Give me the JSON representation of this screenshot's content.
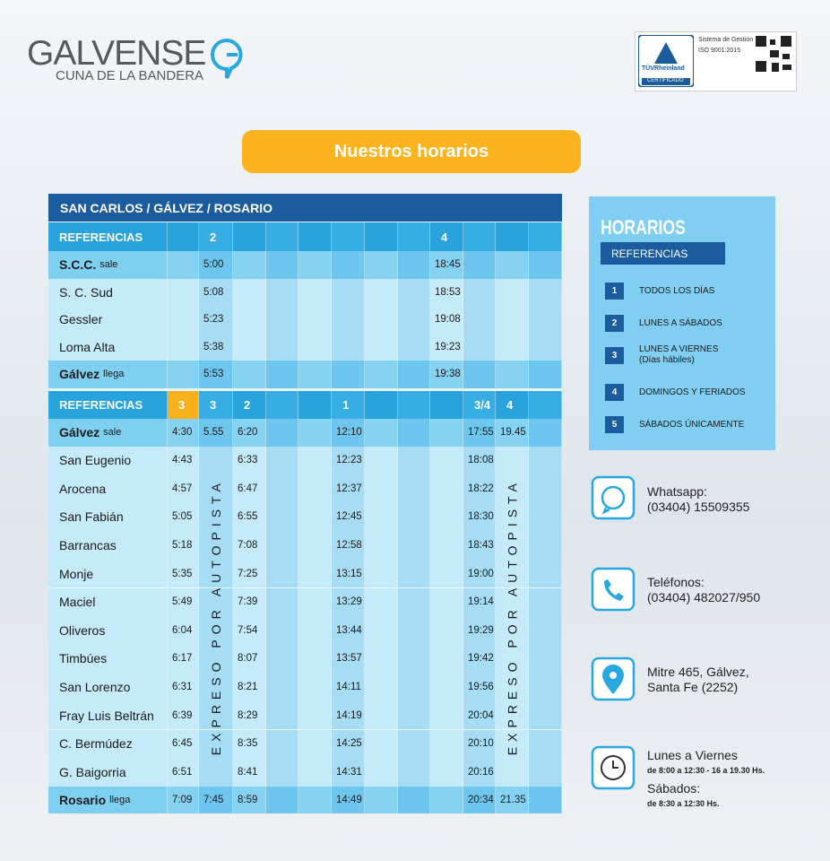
{
  "header": {
    "logo_name": "GALVENSE",
    "logo_tagline": "CUNA DE LA BANDERA",
    "cert_brand": "TÜVRheinland",
    "cert_label": "CERTIFICADO",
    "cert_system": "Sistema de Gestión",
    "cert_iso": "ISO 9001:2015"
  },
  "button": "Nuestros horarios",
  "table": {
    "title": "SAN CARLOS / GÁLVEZ / ROSARIO",
    "express_label": "EXPRESO POR AUTOPISTA",
    "sections": [
      {
        "ref_label": "REFERENCIAS",
        "refs": [
          null,
          "2",
          null,
          null,
          null,
          null,
          null,
          null,
          "4",
          null,
          null,
          null
        ],
        "rows": [
          {
            "name": "S.C.C.",
            "note": "sale",
            "times": [
              null,
              "5:00",
              null,
              null,
              null,
              null,
              null,
              null,
              "18:45",
              null,
              null,
              null
            ]
          },
          {
            "name": "S. C. Sud",
            "times": [
              null,
              "5:08",
              null,
              null,
              null,
              null,
              null,
              null,
              "18:53",
              null,
              null,
              null
            ]
          },
          {
            "name": "Gessler",
            "times": [
              null,
              "5:23",
              null,
              null,
              null,
              null,
              null,
              null,
              "19:08",
              null,
              null,
              null
            ]
          },
          {
            "name": "Loma Alta",
            "times": [
              null,
              "5:38",
              null,
              null,
              null,
              null,
              null,
              null,
              "19:23",
              null,
              null,
              null
            ]
          },
          {
            "name": "Gálvez",
            "note": "llega",
            "times": [
              null,
              "5:53",
              null,
              null,
              null,
              null,
              null,
              null,
              "19:38",
              null,
              null,
              null
            ]
          }
        ]
      },
      {
        "ref_label": "REFERENCIAS",
        "refs": [
          "3",
          "3",
          "2",
          null,
          null,
          "1",
          null,
          null,
          null,
          "3/4",
          "4",
          null
        ],
        "rows": [
          {
            "name": "Gálvez",
            "note": "sale",
            "times": [
              "4:30",
              "5.55",
              "6:20",
              null,
              null,
              "12:10",
              null,
              null,
              null,
              "17:55",
              "19.45",
              null
            ]
          },
          {
            "name": "San Eugenio",
            "times": [
              "4:43",
              null,
              "6:33",
              null,
              null,
              "12:23",
              null,
              null,
              null,
              "18:08",
              null,
              null
            ]
          },
          {
            "name": "Arocena",
            "times": [
              "4:57",
              null,
              "6:47",
              null,
              null,
              "12:37",
              null,
              null,
              null,
              "18:22",
              null,
              null
            ]
          },
          {
            "name": "San Fabián",
            "times": [
              "5:05",
              null,
              "6:55",
              null,
              null,
              "12:45",
              null,
              null,
              null,
              "18:30",
              null,
              null
            ]
          },
          {
            "name": "Barrancas",
            "times": [
              "5:18",
              null,
              "7:08",
              null,
              null,
              "12:58",
              null,
              null,
              null,
              "18:43",
              null,
              null
            ]
          },
          {
            "name": "Monje",
            "times": [
              "5:35",
              null,
              "7:25",
              null,
              null,
              "13:15",
              null,
              null,
              null,
              "19:00",
              null,
              null
            ]
          },
          {
            "name": "Maciel",
            "times": [
              "5:49",
              null,
              "7:39",
              null,
              null,
              "13:29",
              null,
              null,
              null,
              "19:14",
              null,
              null
            ]
          },
          {
            "name": "Oliveros",
            "times": [
              "6:04",
              null,
              "7:54",
              null,
              null,
              "13:44",
              null,
              null,
              null,
              "19:29",
              null,
              null
            ]
          },
          {
            "name": "Timbúes",
            "times": [
              "6:17",
              null,
              "8:07",
              null,
              null,
              "13:57",
              null,
              null,
              null,
              "19:42",
              null,
              null
            ]
          },
          {
            "name": "San Lorenzo",
            "times": [
              "6:31",
              null,
              "8:21",
              null,
              null,
              "14:11",
              null,
              null,
              null,
              "19:56",
              null,
              null
            ]
          },
          {
            "name": "Fray Luis Beltrán",
            "times": [
              "6:39",
              null,
              "8:29",
              null,
              null,
              "14:19",
              null,
              null,
              null,
              "20:04",
              null,
              null
            ]
          },
          {
            "name": "C. Bermúdez",
            "times": [
              "6:45",
              null,
              "8:35",
              null,
              null,
              "14:25",
              null,
              null,
              null,
              "20:10",
              null,
              null
            ]
          },
          {
            "name": "G. Baigorria",
            "times": [
              "6:51",
              null,
              "8:41",
              null,
              null,
              "14:31",
              null,
              null,
              null,
              "20:16",
              null,
              null
            ]
          },
          {
            "name": "Rosario",
            "note": "llega",
            "times": [
              "7:09",
              "7:45",
              "8:59",
              null,
              null,
              "14:49",
              null,
              null,
              null,
              "20:34",
              "21.35",
              null
            ]
          }
        ]
      }
    ]
  },
  "references": {
    "title": "HORARIOS",
    "subtitle": "REFERENCIAS",
    "items": [
      {
        "num": "1",
        "text": "TODOS LOS DÍAS"
      },
      {
        "num": "2",
        "text": "LUNES A SÁBADOS"
      },
      {
        "num": "3",
        "text": "LUNES A VIERNES",
        "sub": "(Días hábiles)"
      },
      {
        "num": "4",
        "text": "DOMINGOS Y FERIADOS"
      },
      {
        "num": "5",
        "text": "SÁBADOS ÚNICAMENTE"
      }
    ]
  },
  "contacts": [
    {
      "lines": [
        "Whatsapp:",
        "(03404) 15509355"
      ]
    },
    {
      "lines": [
        "Teléfonos:",
        "(03404) 482027/950"
      ]
    },
    {
      "lines": [
        "Mitre 465, Gálvez,",
        "Santa Fe (2252)"
      ]
    },
    {
      "lines": [
        "Lunes a Viernes",
        "de 8:00 a 12:30 - 16 a 19.30 Hs.",
        "Sábados:",
        "de 8:30 a 12:30 Hs."
      ]
    }
  ]
}
